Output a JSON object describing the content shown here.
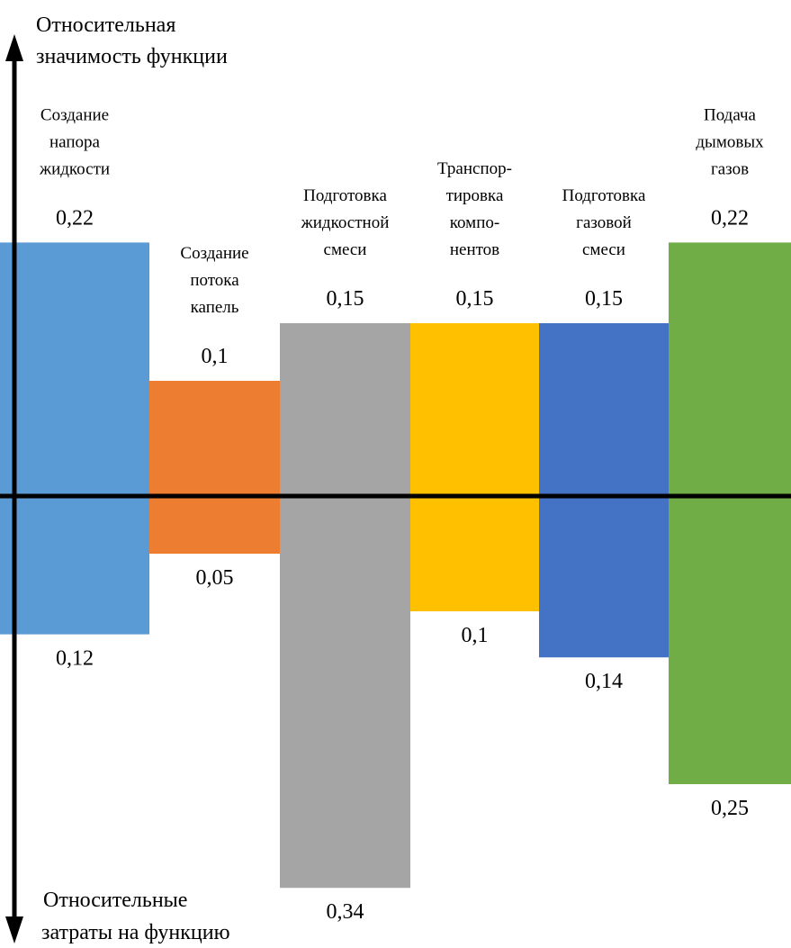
{
  "chart_data": {
    "type": "bar",
    "top_axis_label": [
      "Относительная",
      "значимость функции"
    ],
    "bottom_axis_label": [
      "Относительные",
      "затраты на функцию"
    ],
    "categories": [
      {
        "label_lines": [
          "Создание",
          "напора",
          "жидкости"
        ]
      },
      {
        "label_lines": [
          "Создание",
          "потока",
          "капель"
        ]
      },
      {
        "label_lines": [
          "Подготовка",
          "жидкостной",
          "смеси"
        ]
      },
      {
        "label_lines": [
          "Транспор-",
          "тировка",
          "компо-",
          "нентов"
        ]
      },
      {
        "label_lines": [
          "Подготовка",
          "газовой",
          "смеси"
        ]
      },
      {
        "label_lines": [
          "Подача",
          "дымовых",
          "газов"
        ]
      }
    ],
    "series": [
      {
        "values": [
          0.22,
          0.1,
          0.15,
          0.15,
          0.15,
          0.22
        ],
        "labels": [
          "0,22",
          "0,1",
          "0,15",
          "0,15",
          "0,15",
          "0,22"
        ]
      },
      {
        "values": [
          0.12,
          0.05,
          0.34,
          0.1,
          0.14,
          0.25
        ],
        "labels": [
          "0,12",
          "0,05",
          "0,34",
          "0,1",
          "0,14",
          "0,25"
        ]
      }
    ],
    "colors": [
      "#5b9bd5",
      "#ed7d31",
      "#a5a5a5",
      "#ffc000",
      "#4472c4",
      "#70ad47"
    ]
  }
}
